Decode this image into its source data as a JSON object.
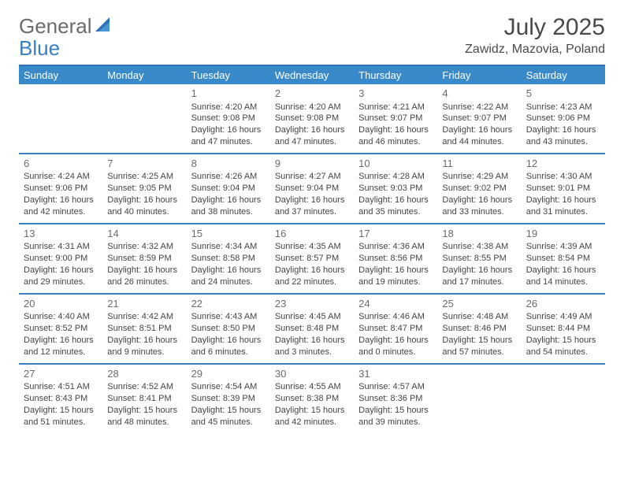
{
  "logo": {
    "part1": "General",
    "part2": "Blue"
  },
  "title": "July 2025",
  "location": "Zawidz, Mazovia, Poland",
  "colors": {
    "header_bg": "#3a8ac9",
    "border": "#3a7fc4",
    "text": "#444444",
    "title_text": "#4a4a4a",
    "logo_gray": "#6b6b6b",
    "logo_blue": "#3a7fc4",
    "background": "#ffffff"
  },
  "day_names": [
    "Sunday",
    "Monday",
    "Tuesday",
    "Wednesday",
    "Thursday",
    "Friday",
    "Saturday"
  ],
  "weeks": [
    [
      null,
      null,
      {
        "n": "1",
        "sr": "Sunrise: 4:20 AM",
        "ss": "Sunset: 9:08 PM",
        "dl1": "Daylight: 16 hours",
        "dl2": "and 47 minutes."
      },
      {
        "n": "2",
        "sr": "Sunrise: 4:20 AM",
        "ss": "Sunset: 9:08 PM",
        "dl1": "Daylight: 16 hours",
        "dl2": "and 47 minutes."
      },
      {
        "n": "3",
        "sr": "Sunrise: 4:21 AM",
        "ss": "Sunset: 9:07 PM",
        "dl1": "Daylight: 16 hours",
        "dl2": "and 46 minutes."
      },
      {
        "n": "4",
        "sr": "Sunrise: 4:22 AM",
        "ss": "Sunset: 9:07 PM",
        "dl1": "Daylight: 16 hours",
        "dl2": "and 44 minutes."
      },
      {
        "n": "5",
        "sr": "Sunrise: 4:23 AM",
        "ss": "Sunset: 9:06 PM",
        "dl1": "Daylight: 16 hours",
        "dl2": "and 43 minutes."
      }
    ],
    [
      {
        "n": "6",
        "sr": "Sunrise: 4:24 AM",
        "ss": "Sunset: 9:06 PM",
        "dl1": "Daylight: 16 hours",
        "dl2": "and 42 minutes."
      },
      {
        "n": "7",
        "sr": "Sunrise: 4:25 AM",
        "ss": "Sunset: 9:05 PM",
        "dl1": "Daylight: 16 hours",
        "dl2": "and 40 minutes."
      },
      {
        "n": "8",
        "sr": "Sunrise: 4:26 AM",
        "ss": "Sunset: 9:04 PM",
        "dl1": "Daylight: 16 hours",
        "dl2": "and 38 minutes."
      },
      {
        "n": "9",
        "sr": "Sunrise: 4:27 AM",
        "ss": "Sunset: 9:04 PM",
        "dl1": "Daylight: 16 hours",
        "dl2": "and 37 minutes."
      },
      {
        "n": "10",
        "sr": "Sunrise: 4:28 AM",
        "ss": "Sunset: 9:03 PM",
        "dl1": "Daylight: 16 hours",
        "dl2": "and 35 minutes."
      },
      {
        "n": "11",
        "sr": "Sunrise: 4:29 AM",
        "ss": "Sunset: 9:02 PM",
        "dl1": "Daylight: 16 hours",
        "dl2": "and 33 minutes."
      },
      {
        "n": "12",
        "sr": "Sunrise: 4:30 AM",
        "ss": "Sunset: 9:01 PM",
        "dl1": "Daylight: 16 hours",
        "dl2": "and 31 minutes."
      }
    ],
    [
      {
        "n": "13",
        "sr": "Sunrise: 4:31 AM",
        "ss": "Sunset: 9:00 PM",
        "dl1": "Daylight: 16 hours",
        "dl2": "and 29 minutes."
      },
      {
        "n": "14",
        "sr": "Sunrise: 4:32 AM",
        "ss": "Sunset: 8:59 PM",
        "dl1": "Daylight: 16 hours",
        "dl2": "and 26 minutes."
      },
      {
        "n": "15",
        "sr": "Sunrise: 4:34 AM",
        "ss": "Sunset: 8:58 PM",
        "dl1": "Daylight: 16 hours",
        "dl2": "and 24 minutes."
      },
      {
        "n": "16",
        "sr": "Sunrise: 4:35 AM",
        "ss": "Sunset: 8:57 PM",
        "dl1": "Daylight: 16 hours",
        "dl2": "and 22 minutes."
      },
      {
        "n": "17",
        "sr": "Sunrise: 4:36 AM",
        "ss": "Sunset: 8:56 PM",
        "dl1": "Daylight: 16 hours",
        "dl2": "and 19 minutes."
      },
      {
        "n": "18",
        "sr": "Sunrise: 4:38 AM",
        "ss": "Sunset: 8:55 PM",
        "dl1": "Daylight: 16 hours",
        "dl2": "and 17 minutes."
      },
      {
        "n": "19",
        "sr": "Sunrise: 4:39 AM",
        "ss": "Sunset: 8:54 PM",
        "dl1": "Daylight: 16 hours",
        "dl2": "and 14 minutes."
      }
    ],
    [
      {
        "n": "20",
        "sr": "Sunrise: 4:40 AM",
        "ss": "Sunset: 8:52 PM",
        "dl1": "Daylight: 16 hours",
        "dl2": "and 12 minutes."
      },
      {
        "n": "21",
        "sr": "Sunrise: 4:42 AM",
        "ss": "Sunset: 8:51 PM",
        "dl1": "Daylight: 16 hours",
        "dl2": "and 9 minutes."
      },
      {
        "n": "22",
        "sr": "Sunrise: 4:43 AM",
        "ss": "Sunset: 8:50 PM",
        "dl1": "Daylight: 16 hours",
        "dl2": "and 6 minutes."
      },
      {
        "n": "23",
        "sr": "Sunrise: 4:45 AM",
        "ss": "Sunset: 8:48 PM",
        "dl1": "Daylight: 16 hours",
        "dl2": "and 3 minutes."
      },
      {
        "n": "24",
        "sr": "Sunrise: 4:46 AM",
        "ss": "Sunset: 8:47 PM",
        "dl1": "Daylight: 16 hours",
        "dl2": "and 0 minutes."
      },
      {
        "n": "25",
        "sr": "Sunrise: 4:48 AM",
        "ss": "Sunset: 8:46 PM",
        "dl1": "Daylight: 15 hours",
        "dl2": "and 57 minutes."
      },
      {
        "n": "26",
        "sr": "Sunrise: 4:49 AM",
        "ss": "Sunset: 8:44 PM",
        "dl1": "Daylight: 15 hours",
        "dl2": "and 54 minutes."
      }
    ],
    [
      {
        "n": "27",
        "sr": "Sunrise: 4:51 AM",
        "ss": "Sunset: 8:43 PM",
        "dl1": "Daylight: 15 hours",
        "dl2": "and 51 minutes."
      },
      {
        "n": "28",
        "sr": "Sunrise: 4:52 AM",
        "ss": "Sunset: 8:41 PM",
        "dl1": "Daylight: 15 hours",
        "dl2": "and 48 minutes."
      },
      {
        "n": "29",
        "sr": "Sunrise: 4:54 AM",
        "ss": "Sunset: 8:39 PM",
        "dl1": "Daylight: 15 hours",
        "dl2": "and 45 minutes."
      },
      {
        "n": "30",
        "sr": "Sunrise: 4:55 AM",
        "ss": "Sunset: 8:38 PM",
        "dl1": "Daylight: 15 hours",
        "dl2": "and 42 minutes."
      },
      {
        "n": "31",
        "sr": "Sunrise: 4:57 AM",
        "ss": "Sunset: 8:36 PM",
        "dl1": "Daylight: 15 hours",
        "dl2": "and 39 minutes."
      },
      null,
      null
    ]
  ]
}
